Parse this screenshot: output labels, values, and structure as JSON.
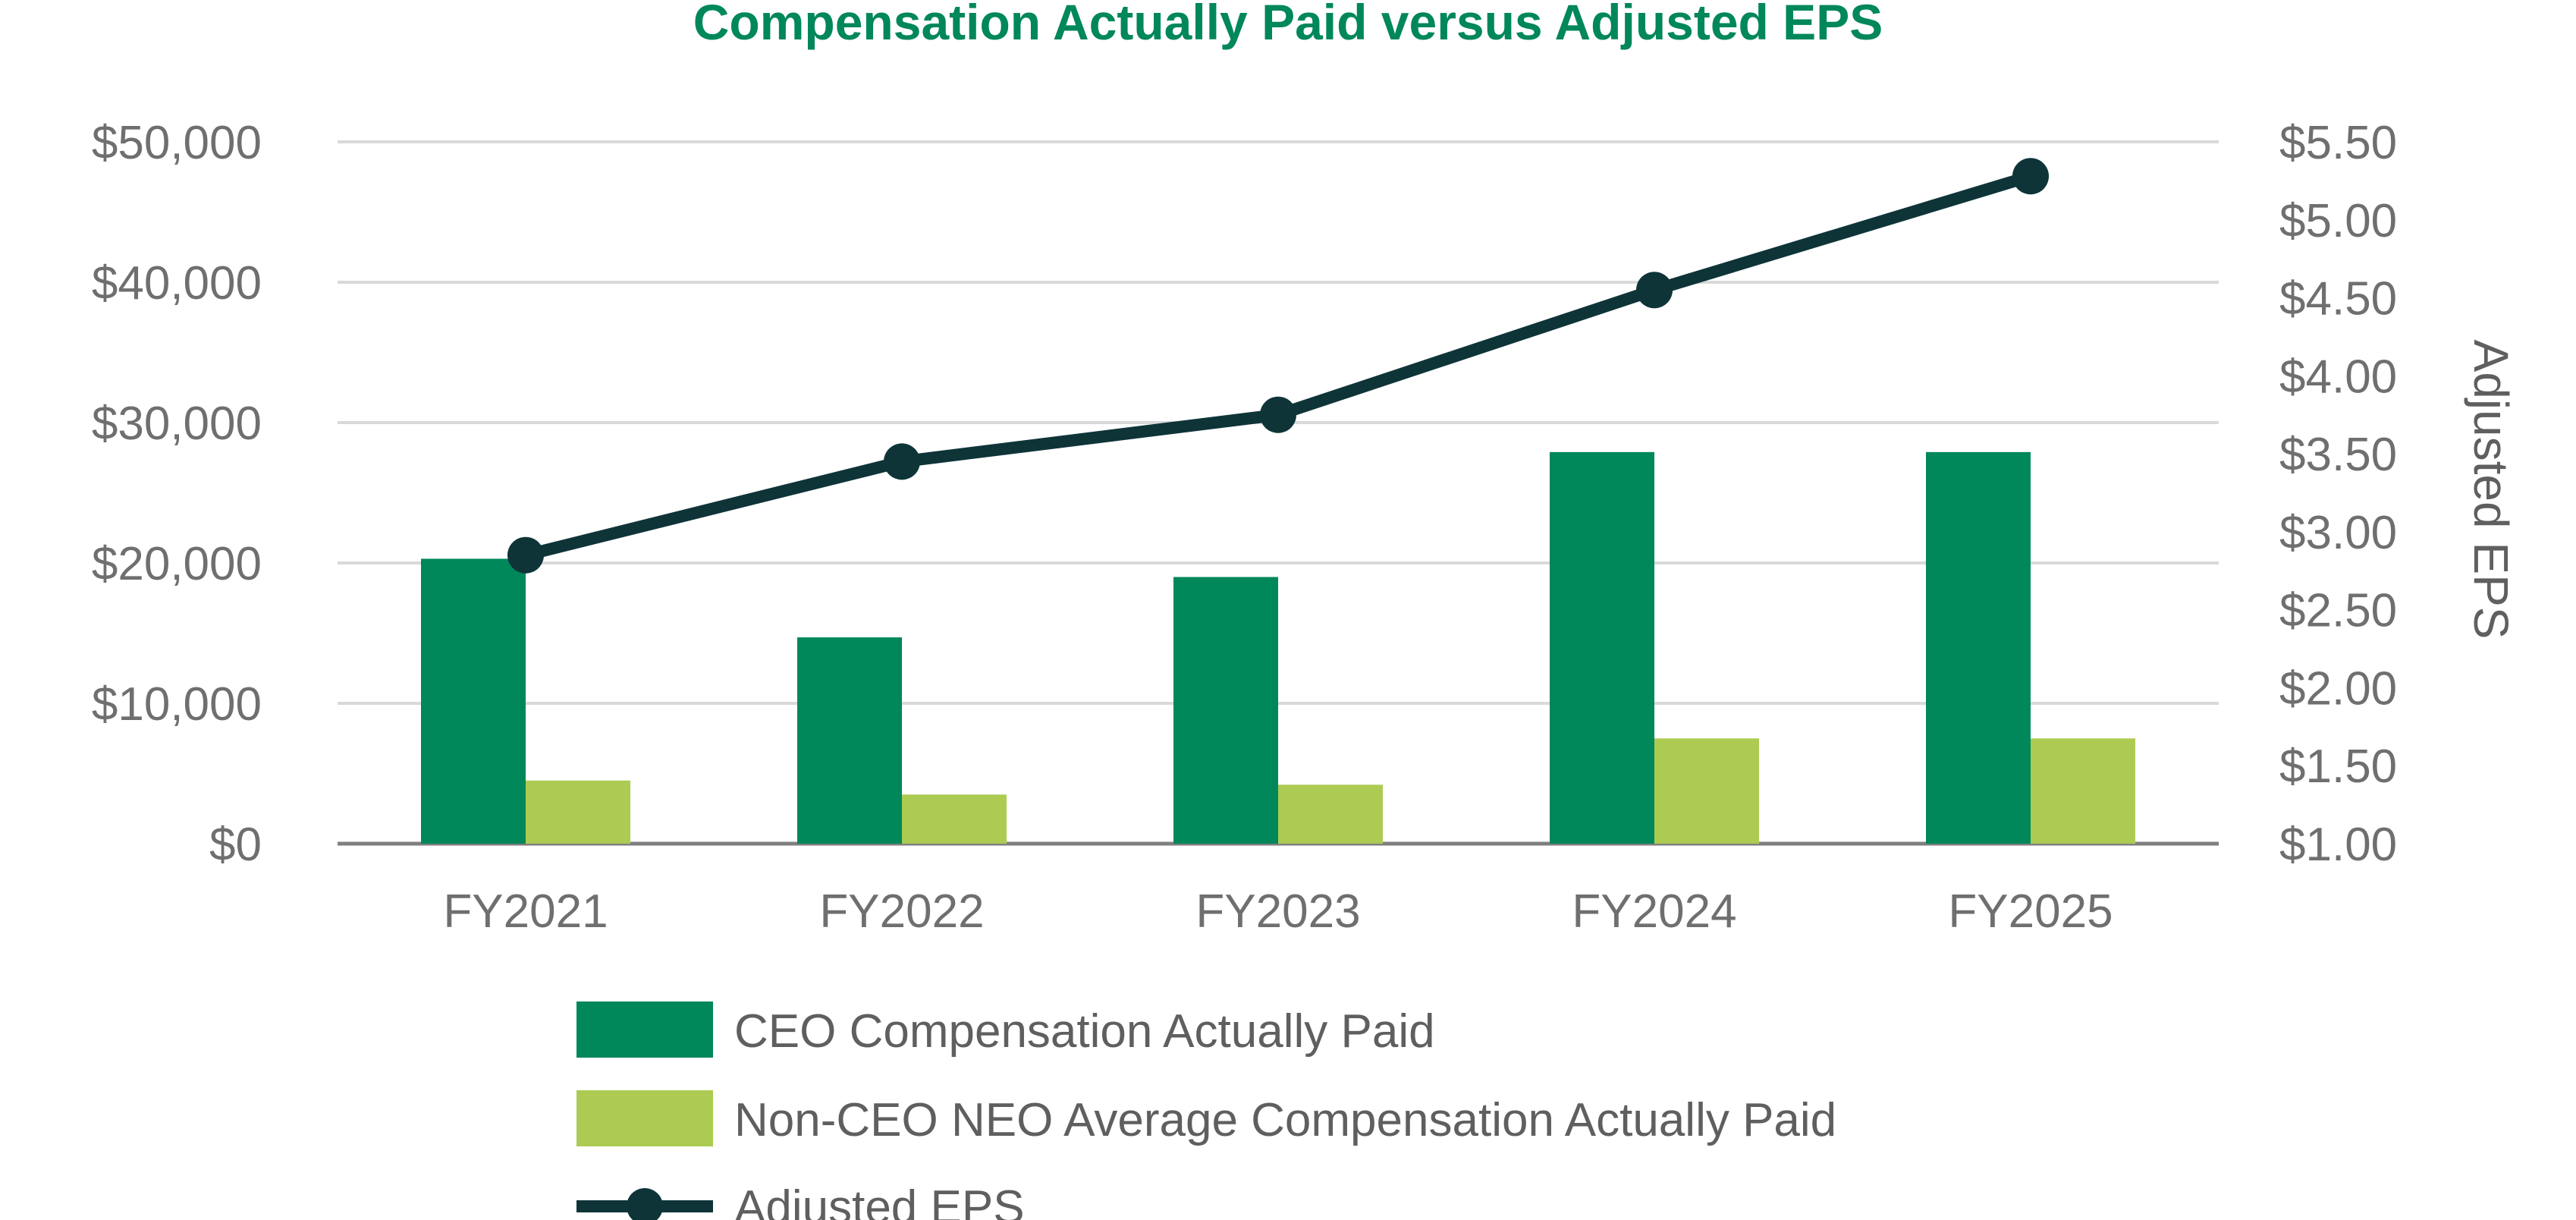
{
  "chart_data": {
    "type": "bar",
    "title": "Compensation Actually Paid versus Adjusted EPS",
    "categories": [
      "FY2021",
      "FY2022",
      "FY2023",
      "FY2024",
      "FY2025"
    ],
    "series": [
      {
        "name": "CEO Compensation Actually Paid",
        "type": "bar",
        "axis": "left",
        "values": [
          20300,
          14700,
          19000,
          27900,
          27900
        ],
        "color": "#00875A"
      },
      {
        "name": "Non-CEO NEO Average Compensation Actually Paid",
        "type": "bar",
        "axis": "left",
        "values": [
          4500,
          3500,
          4200,
          7500,
          7500
        ],
        "color": "#ADCB52"
      },
      {
        "name": "Adjusted EPS",
        "type": "line",
        "axis": "right",
        "values": [
          2.85,
          3.45,
          3.75,
          4.55,
          5.28
        ],
        "color": "#0E3438"
      }
    ],
    "y_left": {
      "label": "",
      "min": 0,
      "max": 50000,
      "ticks": [
        "$0",
        "$10,000",
        "$20,000",
        "$30,000",
        "$40,000",
        "$50,000"
      ]
    },
    "y_right": {
      "label": "Adjusted EPS",
      "min": 1.0,
      "max": 5.5,
      "ticks": [
        "$1.00",
        "$1.50",
        "$2.00",
        "$2.50",
        "$3.00",
        "$3.50",
        "$4.00",
        "$4.50",
        "$5.00",
        "$5.50"
      ]
    },
    "grid": true,
    "legend_position": "bottom",
    "colors": {
      "title": "#00875A",
      "grid": "#d9d9d9",
      "axis": "#7f7f7f",
      "tick": "#6f6f6f"
    }
  }
}
